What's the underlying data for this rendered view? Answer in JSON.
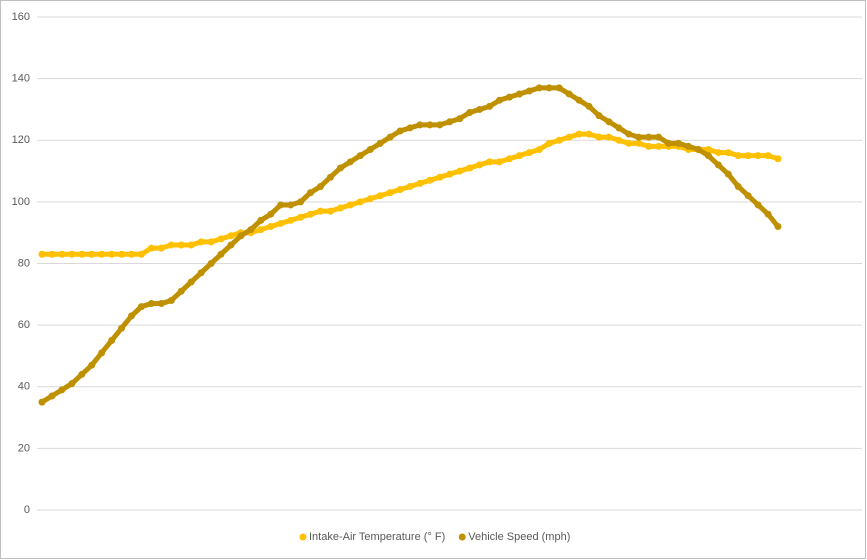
{
  "chart_data": {
    "type": "line",
    "categories": [
      null,
      null,
      null,
      null,
      null,
      null,
      null,
      null,
      null,
      null,
      null,
      null,
      null,
      null,
      null,
      null,
      null,
      null,
      null,
      null,
      null,
      null,
      null,
      null,
      null,
      null,
      null,
      null,
      null,
      null,
      null,
      null,
      null,
      null,
      null,
      null,
      null,
      null,
      null,
      null,
      null,
      null,
      null,
      null,
      null,
      null,
      null,
      null,
      null,
      null,
      null,
      null,
      null,
      null,
      null,
      null,
      null,
      null,
      null,
      null,
      null,
      null,
      null,
      null,
      null,
      null,
      null,
      null,
      null,
      null,
      null,
      null,
      null,
      null,
      null
    ],
    "series": [
      {
        "name": "Intake-Air Temperature (° F)",
        "color": "#FFC000",
        "values": [
          83,
          83,
          83,
          83,
          83,
          83,
          83,
          83,
          83,
          83,
          83,
          85,
          85,
          86,
          86,
          86,
          87,
          87,
          88,
          89,
          90,
          90,
          91,
          92,
          93,
          94,
          95,
          96,
          97,
          97,
          98,
          99,
          100,
          101,
          102,
          103,
          104,
          105,
          106,
          107,
          108,
          109,
          110,
          111,
          112,
          113,
          113,
          114,
          115,
          116,
          117,
          119,
          120,
          121,
          122,
          122,
          121,
          121,
          120,
          119,
          119,
          118,
          118,
          118,
          118,
          117,
          117,
          117,
          116,
          116,
          115,
          115,
          115,
          115,
          114
        ]
      },
      {
        "name": "Vehicle Speed (mph)",
        "color": "#BF9000",
        "values": [
          35,
          37,
          39,
          41,
          44,
          47,
          51,
          55,
          59,
          63,
          66,
          67,
          67,
          68,
          71,
          74,
          77,
          80,
          83,
          86,
          89,
          91,
          94,
          96,
          99,
          99,
          100,
          103,
          105,
          108,
          111,
          113,
          115,
          117,
          119,
          121,
          123,
          124,
          125,
          125,
          125,
          126,
          127,
          129,
          130,
          131,
          133,
          134,
          135,
          136,
          137,
          137,
          137,
          135,
          133,
          131,
          128,
          126,
          124,
          122,
          121,
          121,
          121,
          119,
          119,
          118,
          117,
          115,
          112,
          109,
          105,
          102,
          99,
          96,
          92
        ]
      }
    ],
    "ylim": [
      0,
      160
    ],
    "yticks": [
      0,
      20,
      40,
      60,
      80,
      100,
      120,
      140,
      160
    ],
    "grid": true,
    "legend": "bottom"
  }
}
